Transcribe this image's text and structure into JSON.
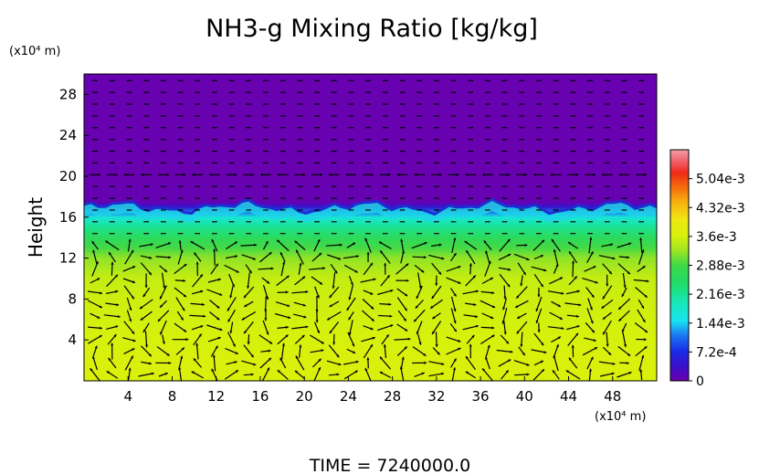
{
  "chart_data": {
    "type": "heatmap",
    "title": "NH3-g Mixing Ratio [kg/kg]",
    "ylabel": "Height",
    "y_unit": "(x10⁴ m)",
    "x_unit": "(x10⁴ m)",
    "x_ticks": [
      "4",
      "8",
      "12",
      "16",
      "20",
      "24",
      "28",
      "32",
      "36",
      "40",
      "44",
      "48"
    ],
    "y_ticks": [
      "4",
      "8",
      "12",
      "16",
      "20",
      "24",
      "28"
    ],
    "xlim": [
      0,
      52
    ],
    "ylim": [
      0,
      30
    ],
    "colorbar": {
      "labels": [
        "0",
        "7.2e-4",
        "1.44e-3",
        "2.16e-3",
        "2.88e-3",
        "3.6e-3",
        "4.32e-3",
        "5.04e-3"
      ],
      "range": [
        0,
        0.00576
      ]
    },
    "field_profile": {
      "height": [
        0,
        4,
        8,
        10,
        12,
        13,
        14,
        15,
        16,
        16.5,
        17,
        17.5,
        20,
        30
      ],
      "value": [
        0.00365,
        0.00362,
        0.00355,
        0.0035,
        0.0032,
        0.0029,
        0.0026,
        0.0022,
        0.0017,
        0.0011,
        0.0004,
        5e-05,
        3e-05,
        3e-05
      ]
    },
    "vectors": "wind velocity arrows (overlay)",
    "footer": "TIME = 7240000.0"
  },
  "colors": {
    "background_top": "#6d00b0",
    "mid": "#29d84f",
    "bottom": "#d7f20b"
  }
}
